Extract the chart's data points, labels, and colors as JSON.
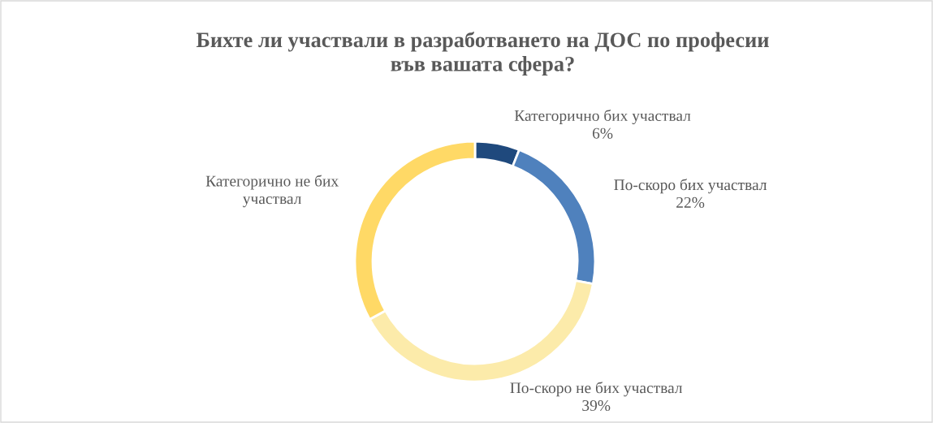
{
  "chart_data": {
    "type": "donut",
    "title": "Бихте ли участвали в разработването на ДОС по професии\nвъв вашата сфера?",
    "categories": [
      "Категорично бих участвал",
      "По-скоро бих участвал",
      "По-скоро не бих участвал",
      "Категорично не бих\nучаствал"
    ],
    "values": [
      6,
      22,
      39,
      33
    ],
    "value_labels": [
      "6%",
      "22%",
      "39%",
      null
    ],
    "colors": [
      "#1f497d",
      "#4f81bd",
      "#fcebaa",
      "#ffd966"
    ],
    "legend": false
  }
}
